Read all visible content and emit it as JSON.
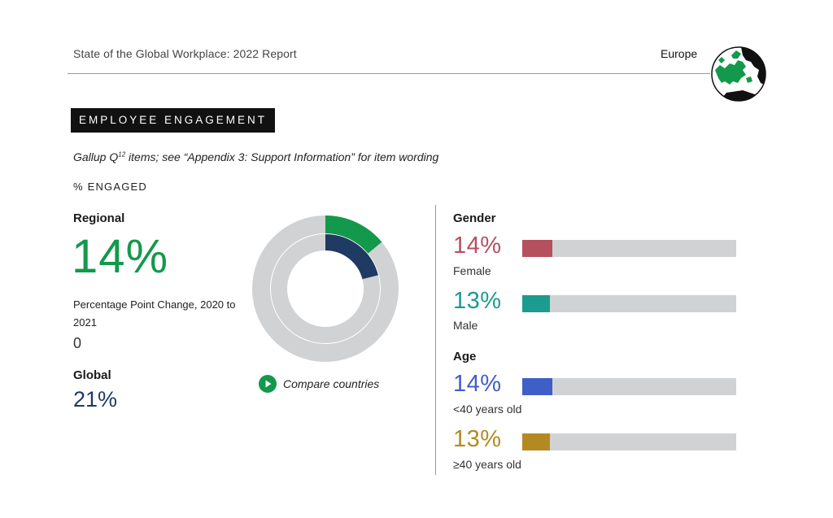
{
  "header": {
    "report_title": "State of the Global Workplace: 2022 Report",
    "region": "Europe",
    "globe_icon": "europe-globe-icon"
  },
  "section": {
    "badge": "EMPLOYEE ENGAGEMENT",
    "subtitle_pre": "Gallup Q",
    "subtitle_sup": "12",
    "subtitle_post": " items; see “Appendix 3: Support Information” for item wording",
    "metric_label": "% ENGAGED"
  },
  "left": {
    "regional_label": "Regional",
    "regional_value": "14%",
    "ppc_label": "Percentage Point Change, 2020 to 2021",
    "ppc_value": "0",
    "global_label": "Global",
    "global_value": "21%"
  },
  "donut": {
    "outer_value": 14,
    "inner_value": 21,
    "outer_color": "#13994b",
    "inner_color": "#1f3a63",
    "track_color": "#d0d2d3"
  },
  "compare": {
    "label": "Compare countries",
    "icon": "play-circle-icon",
    "color": "#13994b"
  },
  "gender": {
    "label": "Gender",
    "rows": [
      {
        "pct": "14%",
        "value": 14,
        "category": "Female",
        "color": "#b5505f"
      },
      {
        "pct": "13%",
        "value": 13,
        "category": "Male",
        "color": "#1c9b8f"
      }
    ]
  },
  "age": {
    "label": "Age",
    "rows": [
      {
        "pct": "14%",
        "value": 14,
        "category": "<40 years old",
        "color": "#3f5fc8"
      },
      {
        "pct": "13%",
        "value": 13,
        "category": "≥40 years old",
        "color": "#b38a22"
      }
    ]
  }
}
